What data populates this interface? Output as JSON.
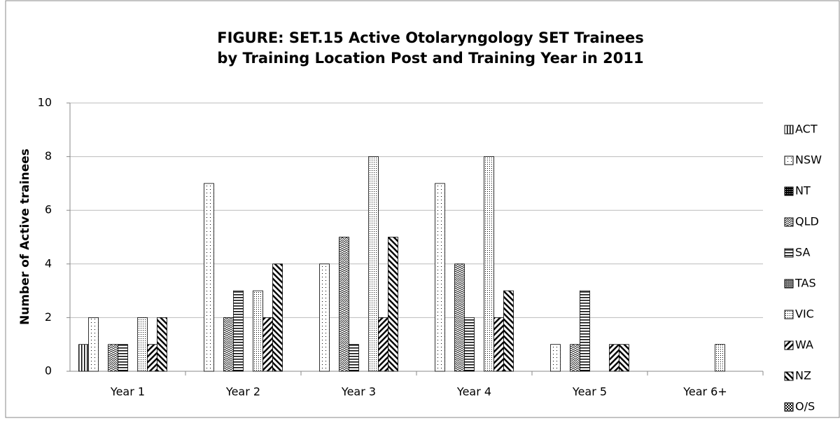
{
  "chart_data": {
    "type": "bar",
    "title": [
      "FIGURE: SET.15 Active Otolaryngology SET Trainees",
      "by Training Location Post and Training Year in 2011"
    ],
    "y_label": "Number of Active trainees",
    "categories": [
      "Year 1",
      "Year 2",
      "Year 3",
      "Year 4",
      "Year 5",
      "Year 6+"
    ],
    "series": [
      {
        "name": "ACT",
        "color": "#000000",
        "values": [
          1,
          0,
          0,
          0,
          0,
          0
        ]
      },
      {
        "name": "NSW",
        "color": "#000000",
        "values": [
          2,
          7,
          4,
          7,
          1,
          0
        ]
      },
      {
        "name": "NT",
        "color": "#000000",
        "values": [
          0,
          0,
          0,
          0,
          0,
          0
        ]
      },
      {
        "name": "QLD",
        "color": "#000000",
        "values": [
          1,
          2,
          5,
          4,
          1,
          0
        ]
      },
      {
        "name": "SA",
        "color": "#000000",
        "values": [
          1,
          3,
          1,
          2,
          3,
          0
        ]
      },
      {
        "name": "TAS",
        "color": "#000000",
        "values": [
          0,
          0,
          0,
          0,
          0,
          0
        ]
      },
      {
        "name": "VIC",
        "color": "#000000",
        "values": [
          2,
          3,
          8,
          8,
          0,
          1
        ]
      },
      {
        "name": "WA",
        "color": "#000000",
        "values": [
          1,
          2,
          2,
          2,
          1,
          0
        ]
      },
      {
        "name": "NZ",
        "color": "#000000",
        "values": [
          2,
          4,
          5,
          3,
          1,
          0
        ]
      },
      {
        "name": "O/S",
        "color": "#000000",
        "values": [
          0,
          0,
          0,
          0,
          0,
          0
        ]
      }
    ],
    "ylim": [
      0,
      10
    ],
    "yticks": [
      0,
      2,
      4,
      6,
      8,
      10
    ],
    "grid": true,
    "legend": "right"
  }
}
